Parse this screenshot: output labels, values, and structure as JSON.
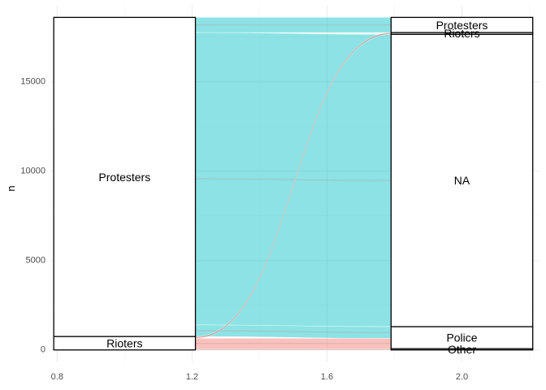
{
  "chart_data": {
    "type": "alluvial",
    "title": "",
    "xlabel": "",
    "ylabel": "n",
    "xlim": [
      0.78,
      2.23
    ],
    "ylim": [
      -650,
      19300
    ],
    "x_ticks": [
      0.8,
      1.2,
      1.6,
      2.0
    ],
    "x_tick_labels": [
      "0.8",
      "1.2",
      "1.6",
      "2.0"
    ],
    "y_ticks": [
      0,
      5000,
      10000,
      15000
    ],
    "y_tick_labels": [
      "0",
      "5000",
      "10000",
      "15000"
    ],
    "grid": true,
    "axes": [
      {
        "x": 1,
        "strata": [
          {
            "label": "Protesters",
            "value": 17850
          },
          {
            "label": "Rioters",
            "value": 750
          }
        ]
      },
      {
        "x": 2,
        "strata": [
          {
            "label": "Protesters",
            "value": 850
          },
          {
            "label": "Rioters",
            "value": 100
          },
          {
            "label": "NA",
            "value": 16350
          },
          {
            "label": "Police",
            "value": 1230
          },
          {
            "label": "Other",
            "value": 70
          }
        ]
      }
    ],
    "flows": [
      {
        "from": "Protesters",
        "to": "Protesters",
        "value": 850,
        "color": "#00bfc4"
      },
      {
        "from": "Protesters",
        "to": "NA",
        "value": 16350,
        "color": "#00bfc4"
      },
      {
        "from": "Protesters",
        "to": "Police",
        "value": 650,
        "color": "#00bfc4"
      },
      {
        "from": "Rioters",
        "to": "Rioters",
        "value": 100,
        "color": "#f8766d"
      },
      {
        "from": "Rioters",
        "to": "Police",
        "value": 580,
        "color": "#f8766d"
      },
      {
        "from": "Rioters",
        "to": "Other",
        "value": 70,
        "color": "#f8766d"
      }
    ],
    "stratum_width": 0.42
  }
}
